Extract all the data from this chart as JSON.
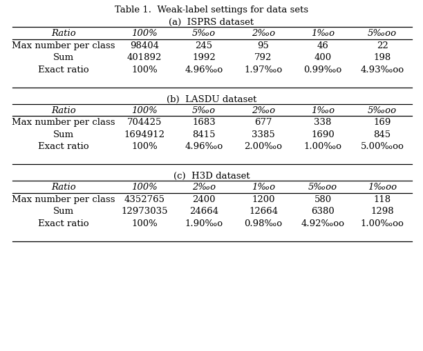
{
  "title": "Table 1.  Weak-label settings for data sets",
  "background_color": "#ffffff",
  "title_fontsize": 9.5,
  "subtitle_fontsize": 9.5,
  "header_fontsize": 9.5,
  "cell_fontsize": 9.5,
  "tables": [
    {
      "subtitle": "(a)  ISPRS dataset",
      "columns": [
        "Ratio",
        "100%",
        "5‰o",
        "2‰o",
        "1‰o",
        "5‰oo"
      ],
      "rows": [
        [
          "Max number per class",
          "98404",
          "245",
          "95",
          "46",
          "22"
        ],
        [
          "Sum",
          "401892",
          "1992",
          "792",
          "400",
          "198"
        ],
        [
          "Exact ratio",
          "100%",
          "4.96‰o",
          "1.97‰o",
          "0.99‰o",
          "4.93‰oo"
        ]
      ]
    },
    {
      "subtitle": "(b)  LASDU dataset",
      "columns": [
        "Ratio",
        "100%",
        "5‰o",
        "2‰o",
        "1‰o",
        "5‰oo"
      ],
      "rows": [
        [
          "Max number per class",
          "704425",
          "1683",
          "677",
          "338",
          "169"
        ],
        [
          "Sum",
          "1694912",
          "8415",
          "3385",
          "1690",
          "845"
        ],
        [
          "Exact ratio",
          "100%",
          "4.96‰o",
          "2.00‰o",
          "1.00‰o",
          "5.00‰oo"
        ]
      ]
    },
    {
      "subtitle": "(c)  H3D dataset",
      "columns": [
        "Ratio",
        "100%",
        "2‰o",
        "1‰o",
        "5‰oo",
        "1‰oo"
      ],
      "rows": [
        [
          "Max number per class",
          "4352765",
          "2400",
          "1200",
          "580",
          "118"
        ],
        [
          "Sum",
          "12973035",
          "24664",
          "12664",
          "6380",
          "1298"
        ],
        [
          "Exact ratio",
          "100%",
          "1.90‰o",
          "0.98‰o",
          "4.92‰oo",
          "1.00‰oo"
        ]
      ]
    }
  ]
}
